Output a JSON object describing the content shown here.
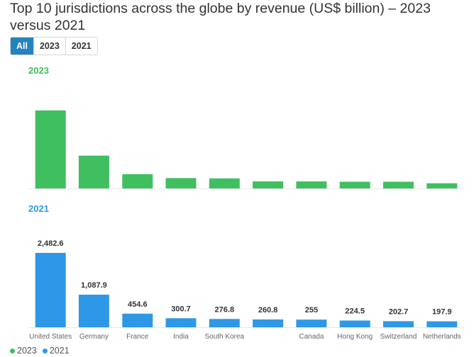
{
  "title": "Top 10 jurisdictions across the globe by revenue (US$ billion) – 2023 versus 2021",
  "tabs": [
    {
      "label": "All",
      "active": true
    },
    {
      "label": "2023",
      "active": false
    },
    {
      "label": "2021",
      "active": false
    }
  ],
  "colors": {
    "series_2023": "#3fbf5f",
    "series_2021": "#2f98e6",
    "accent": "#2383be"
  },
  "legend": [
    {
      "label": "2023",
      "color": "#3fbf5f"
    },
    {
      "label": "2021",
      "color": "#2f98e6"
    }
  ],
  "chart_data": [
    {
      "type": "bar",
      "title": "2023",
      "categories": [
        "United States",
        "Germany",
        "France",
        "India",
        "South Korea",
        "",
        "Canada",
        "Hong Kong",
        "Switzerland",
        "Netherlands"
      ],
      "series": [
        {
          "name": "2023",
          "values": [
            2570,
            1080,
            470,
            340,
            330,
            230,
            230,
            220,
            220,
            170
          ]
        }
      ],
      "ylim": [
        0,
        2800
      ],
      "data_labels_visible": false,
      "grid": false
    },
    {
      "type": "bar",
      "title": "2021",
      "categories": [
        "United States",
        "Germany",
        "France",
        "India",
        "South Korea",
        "",
        "Canada",
        "Hong Kong",
        "Switzerland",
        "Netherlands"
      ],
      "series": [
        {
          "name": "2021",
          "values": [
            2482.6,
            1087.9,
            454.6,
            300.7,
            276.8,
            260.8,
            255,
            224.5,
            202.7,
            197.9
          ]
        }
      ],
      "labels": [
        "2,482.6",
        "1,087.9",
        "454.6",
        "300.7",
        "276.8",
        "260.8",
        "255",
        "224.5",
        "202.7",
        "197.9"
      ],
      "ylim": [
        0,
        2600
      ],
      "data_labels_visible": true,
      "grid": false
    }
  ]
}
